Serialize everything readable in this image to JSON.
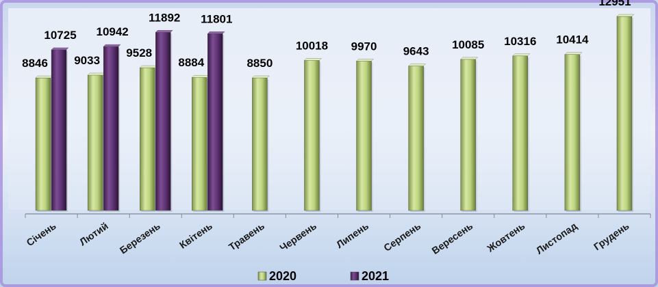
{
  "chart_data": {
    "type": "bar",
    "title": "",
    "xlabel": "",
    "ylabel": "",
    "categories": [
      "Січень",
      "Лютий",
      "Березень",
      "Квітень",
      "Травень",
      "Червень",
      "Липень",
      "Серпень",
      "Вересень",
      "Жовтень",
      "Листопад",
      "Грудень"
    ],
    "series": [
      {
        "name": "2020",
        "color": "#b9cf7d",
        "values": [
          8846,
          9033,
          9528,
          8884,
          8850,
          10018,
          9970,
          9643,
          10085,
          10316,
          10414,
          12951
        ]
      },
      {
        "name": "2021",
        "color": "#5a2f6e",
        "values": [
          10725,
          10942,
          11892,
          11801,
          null,
          null,
          null,
          null,
          null,
          null,
          null,
          null
        ]
      }
    ],
    "ylim": [
      0,
      13500
    ],
    "grid": false,
    "legend": "bottom"
  }
}
